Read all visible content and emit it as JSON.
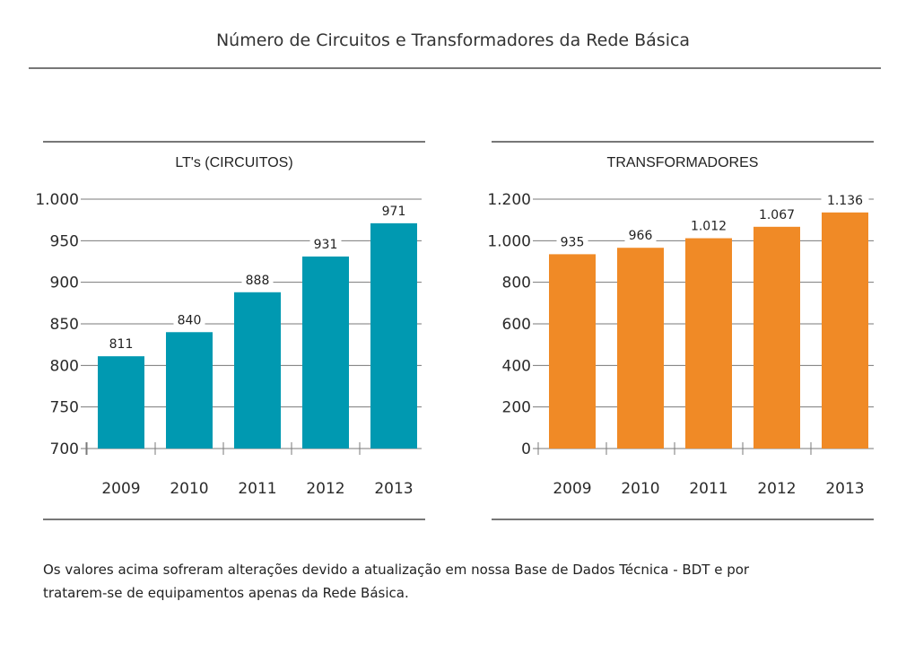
{
  "page": {
    "title": "Número de Circuitos e Transformadores da Rede Básica",
    "note_line1": "Os valores acima sofreram alterações devido a atualização em nossa Base de Dados Técnica - BDT e por",
    "note_line2": "tratarem-se de equipamentos apenas da Rede Básica."
  },
  "colors": {
    "circuitos": "#0099b1",
    "transformadores": "#f08a26",
    "grid": "#7a7a7a"
  },
  "chart_data": [
    {
      "type": "bar",
      "title": "LT's (CIRCUITOS)",
      "categories": [
        "2009",
        "2010",
        "2011",
        "2012",
        "2013"
      ],
      "values": [
        811,
        840,
        888,
        931,
        971
      ],
      "value_labels": [
        "811",
        "840",
        "888",
        "931",
        "971"
      ],
      "ylim": [
        700,
        1000
      ],
      "yticks": [
        700,
        750,
        800,
        850,
        900,
        950,
        1000
      ],
      "ytick_labels": [
        "700",
        "750",
        "800",
        "850",
        "900",
        "950",
        "1.000"
      ],
      "grid": true,
      "color": "#0099b1"
    },
    {
      "type": "bar",
      "title": "TRANSFORMADORES",
      "categories": [
        "2009",
        "2010",
        "2011",
        "2012",
        "2013"
      ],
      "values": [
        935,
        966,
        1012,
        1067,
        1136
      ],
      "value_labels": [
        "935",
        "966",
        "1.012",
        "1.067",
        "1.136"
      ],
      "ylim": [
        0,
        1200
      ],
      "yticks": [
        0,
        200,
        400,
        600,
        800,
        1000,
        1200
      ],
      "ytick_labels": [
        "0",
        "200",
        "400",
        "600",
        "800",
        "1.000",
        "1.200"
      ],
      "grid": true,
      "color": "#f08a26"
    }
  ]
}
